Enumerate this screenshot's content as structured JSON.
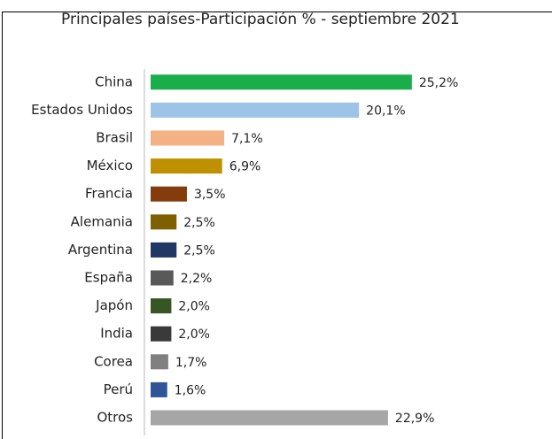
{
  "chart_data": {
    "type": "bar",
    "orientation": "horizontal",
    "title": "Principales países-Participación % - septiembre 2021",
    "categories": [
      "China",
      "Estados Unidos",
      "Brasil",
      "México",
      "Francia",
      "Alemania",
      "Argentina",
      "España",
      "Japón",
      "India",
      "Corea",
      "Perú",
      "Otros"
    ],
    "values": [
      25.2,
      20.1,
      7.1,
      6.9,
      3.5,
      2.5,
      2.5,
      2.2,
      2.0,
      2.0,
      1.7,
      1.6,
      22.9
    ],
    "value_labels": [
      "25,2%",
      "20,1%",
      "7,1%",
      "6,9%",
      "3,5%",
      "2,5%",
      "2,5%",
      "2,2%",
      "2,0%",
      "2,0%",
      "1,7%",
      "1,6%",
      "22,9%"
    ],
    "colors": [
      "#1aae4a",
      "#9dc3e6",
      "#f4b183",
      "#bf9000",
      "#843c0c",
      "#7f6000",
      "#1f3864",
      "#595959",
      "#375623",
      "#3a3a3a",
      "#808080",
      "#2f5597",
      "#a6a6a6"
    ],
    "xlim": [
      0,
      30
    ]
  }
}
